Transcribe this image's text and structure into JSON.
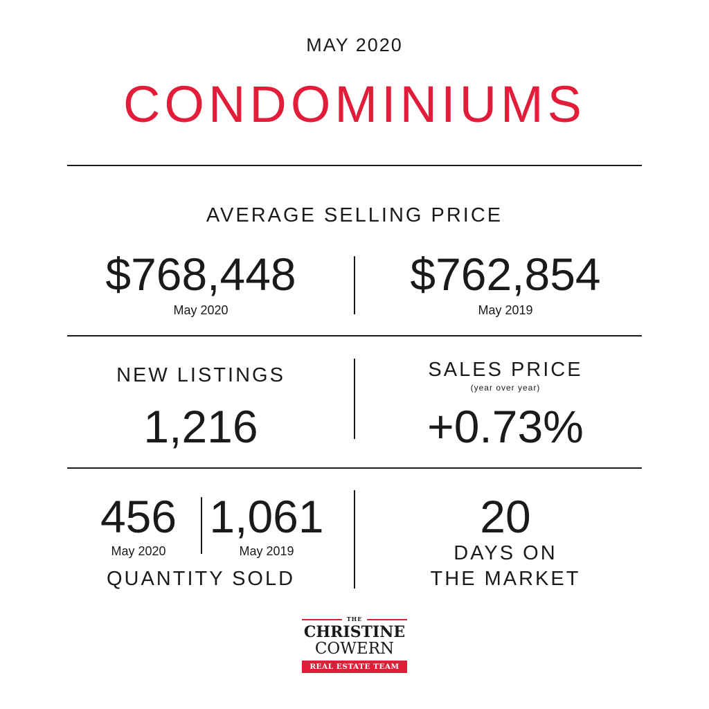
{
  "header": {
    "month": "MAY 2020",
    "title": "CONDOMINIUMS"
  },
  "average_selling_price": {
    "label": "AVERAGE SELLING PRICE",
    "current_value": "$768,448",
    "current_caption": "May 2020",
    "previous_value": "$762,854",
    "previous_caption": "May 2019"
  },
  "new_listings": {
    "label": "NEW LISTINGS",
    "value": "1,216"
  },
  "sales_price": {
    "label": "SALES PRICE",
    "sublabel": "(year over year)",
    "value": "+0.73%"
  },
  "quantity_sold": {
    "current_value": "456",
    "current_caption": "May 2020",
    "previous_value": "1,061",
    "previous_caption": "May 2019",
    "label": "QUANTITY SOLD"
  },
  "days_on_market": {
    "value": "20",
    "label_line1": "DAYS ON",
    "label_line2": "THE MARKET"
  },
  "logo": {
    "the": "THE",
    "line1": "CHRISTINE",
    "line2": "COWERN",
    "band": "REAL ESTATE TEAM"
  },
  "colors": {
    "accent": "#e11d3a",
    "text": "#1a1a1a",
    "background": "#ffffff"
  }
}
